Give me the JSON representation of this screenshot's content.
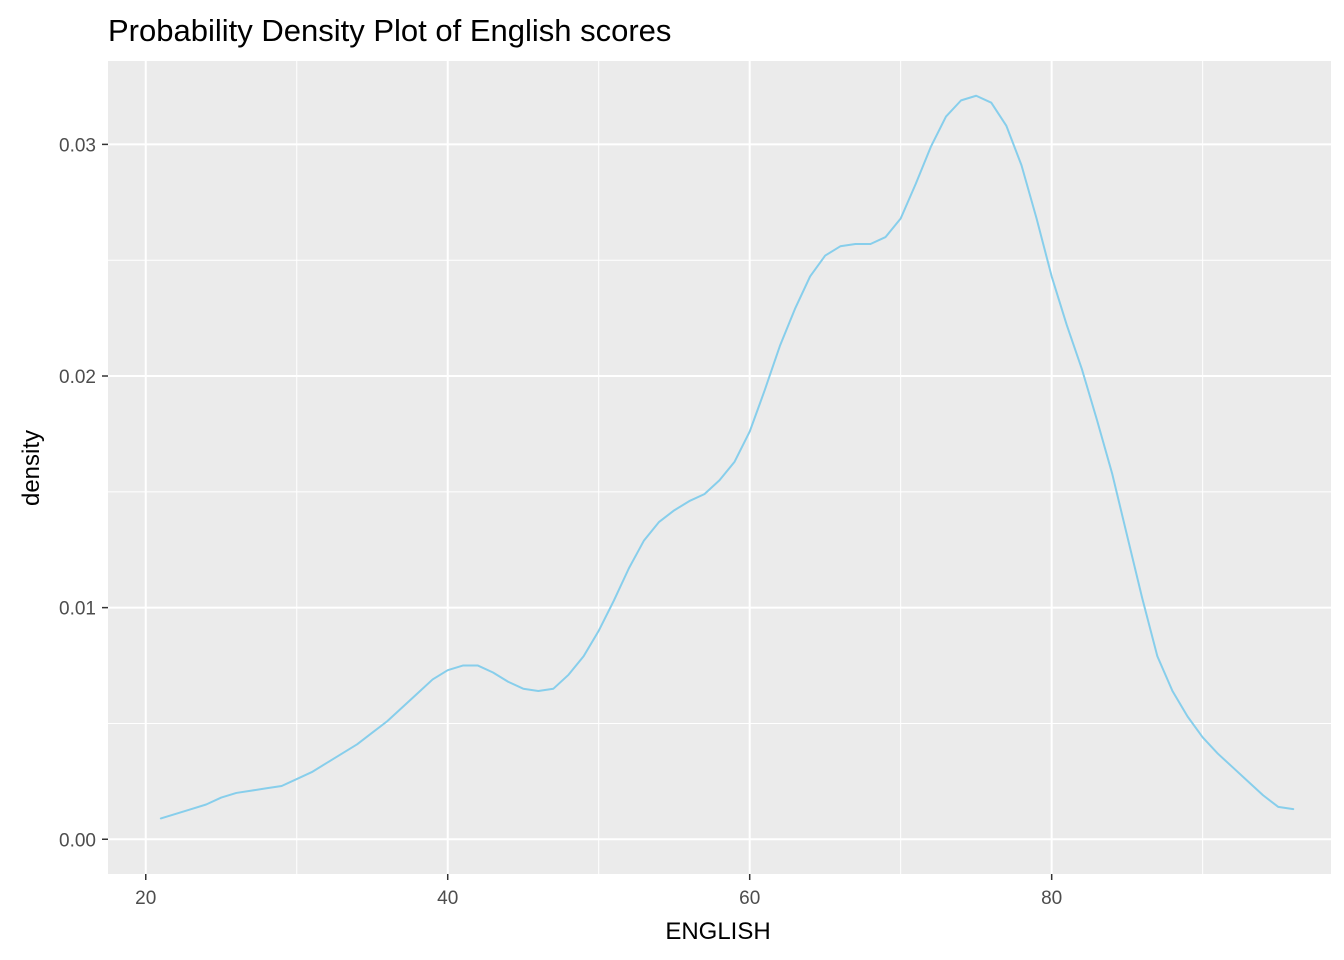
{
  "chart_data": {
    "type": "line",
    "title": "Probability Density Plot of English scores",
    "xlabel": "ENGLISH",
    "ylabel": "density",
    "xlim": [
      17.5,
      98.5
    ],
    "ylim": [
      -0.0015,
      0.0336
    ],
    "x_ticks": [
      20,
      40,
      60,
      80
    ],
    "x_tick_labels": [
      "20",
      "40",
      "60",
      "80"
    ],
    "x_minor_ticks": [
      30,
      50,
      70,
      90
    ],
    "y_ticks": [
      0.0,
      0.01,
      0.02,
      0.03
    ],
    "y_tick_labels": [
      "0.00",
      "0.01",
      "0.02",
      "0.03"
    ],
    "y_minor_ticks": [
      0.005,
      0.015,
      0.025
    ],
    "grid": true,
    "legend": "none",
    "colors": {
      "line": "#87CEEB",
      "panel_background": "#EBEBEB",
      "grid": "#FFFFFF",
      "tick_label": "#4D4D4D"
    },
    "series": [
      {
        "x": [
          21,
          22,
          23,
          24,
          25,
          26,
          27,
          28,
          29,
          30,
          31,
          32,
          33,
          34,
          35,
          36,
          37,
          38,
          39,
          40,
          41,
          42,
          43,
          44,
          45,
          46,
          47,
          48,
          49,
          50,
          51,
          52,
          53,
          54,
          55,
          56,
          57,
          58,
          59,
          60,
          61,
          62,
          63,
          64,
          65,
          66,
          67,
          68,
          69,
          70,
          71,
          72,
          73,
          74,
          75,
          76,
          77,
          78,
          79,
          80,
          81,
          82,
          83,
          84,
          85,
          86,
          87,
          88,
          89,
          90,
          91,
          92,
          93,
          94,
          95,
          96
        ],
        "y": [
          0.0009,
          0.0011,
          0.0013,
          0.0015,
          0.0018,
          0.002,
          0.0021,
          0.0022,
          0.0023,
          0.0026,
          0.0029,
          0.0033,
          0.0037,
          0.0041,
          0.0046,
          0.0051,
          0.0057,
          0.0063,
          0.0069,
          0.0073,
          0.0075,
          0.0075,
          0.0072,
          0.0068,
          0.0065,
          0.0064,
          0.0065,
          0.0071,
          0.0079,
          0.009,
          0.0103,
          0.0117,
          0.0129,
          0.0137,
          0.0142,
          0.0146,
          0.0149,
          0.0155,
          0.0163,
          0.0176,
          0.0194,
          0.0213,
          0.0229,
          0.0243,
          0.0252,
          0.0256,
          0.0257,
          0.0257,
          0.026,
          0.0268,
          0.0283,
          0.0299,
          0.0312,
          0.0319,
          0.0321,
          0.0318,
          0.0308,
          0.0291,
          0.0268,
          0.0243,
          0.0222,
          0.0203,
          0.0181,
          0.0158,
          0.0131,
          0.0104,
          0.0079,
          0.0064,
          0.0053,
          0.0044,
          0.0037,
          0.0031,
          0.0025,
          0.0019,
          0.0014,
          0.0013
        ]
      }
    ]
  }
}
